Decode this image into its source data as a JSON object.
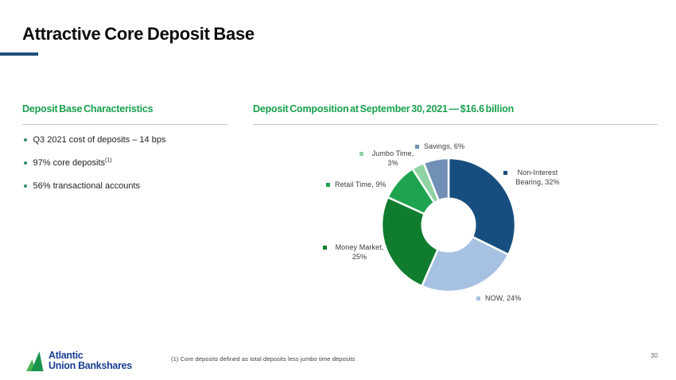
{
  "slide": {
    "title": "Attractive Core Deposit Base"
  },
  "left_panel": {
    "heading": "Deposit Base Characteristics",
    "bullets": [
      {
        "text": "Q3 2021 cost of deposits – 14 bps",
        "sup": ""
      },
      {
        "text": "97% core deposits",
        "sup": "(1)"
      },
      {
        "text": "56% transactional accounts",
        "sup": ""
      }
    ]
  },
  "right_panel": {
    "heading": "Deposit Composition at September 30, 2021 — $16.6 billion"
  },
  "chart_data": {
    "type": "pie",
    "subtype": "donut",
    "title": "Deposit Composition at September 30, 2021 — $16.6 billion",
    "total_label": "$16.6 billion",
    "unit": "%",
    "start_angle_deg": 0,
    "direction": "clockwise",
    "legend_position": "outside-labels",
    "categories": [
      "Non-Interest Bearing",
      "NOW",
      "Money Market",
      "Retail Time",
      "Jumbo Time",
      "Savings"
    ],
    "values": [
      32,
      24,
      25,
      9,
      3,
      6
    ],
    "colors": [
      "#174E7F",
      "#A6C1E2",
      "#107C2E",
      "#1EA44F",
      "#8FD3A2",
      "#7090B6"
    ],
    "segments": [
      {
        "name": "Non-Interest Bearing",
        "value": 32,
        "color": "#174E7F",
        "label_lines": [
          "Non-Interest",
          "Bearing, 32%"
        ]
      },
      {
        "name": "NOW",
        "value": 24,
        "color": "#A6C1E2",
        "label_lines": [
          "NOW, 24%"
        ]
      },
      {
        "name": "Money Market",
        "value": 25,
        "color": "#107C2E",
        "label_lines": [
          "Money Market,",
          "25%"
        ]
      },
      {
        "name": "Retail Time",
        "value": 9,
        "color": "#1EA44F",
        "label_lines": [
          "Retail Time, 9%"
        ]
      },
      {
        "name": "Jumbo Time",
        "value": 3,
        "color": "#8FD3A2",
        "label_lines": [
          "Jumbo Time,",
          "3%"
        ]
      },
      {
        "name": "Savings",
        "value": 6,
        "color": "#7090B6",
        "label_lines": [
          "Savings, 6%"
        ]
      }
    ]
  },
  "footer": {
    "logo_line1": "Atlantic",
    "logo_line2": "Union Bankshares",
    "footnote": "(1) Core deposits defined as total deposits less jumbo time deposits",
    "page_number": "30"
  },
  "theme": {
    "heading_green": "#18A14E",
    "underline_blue": "#1F4E79",
    "logo_blue": "#1A3F94",
    "logo_green_dark": "#18944C",
    "logo_green_light": "#4CB254"
  }
}
